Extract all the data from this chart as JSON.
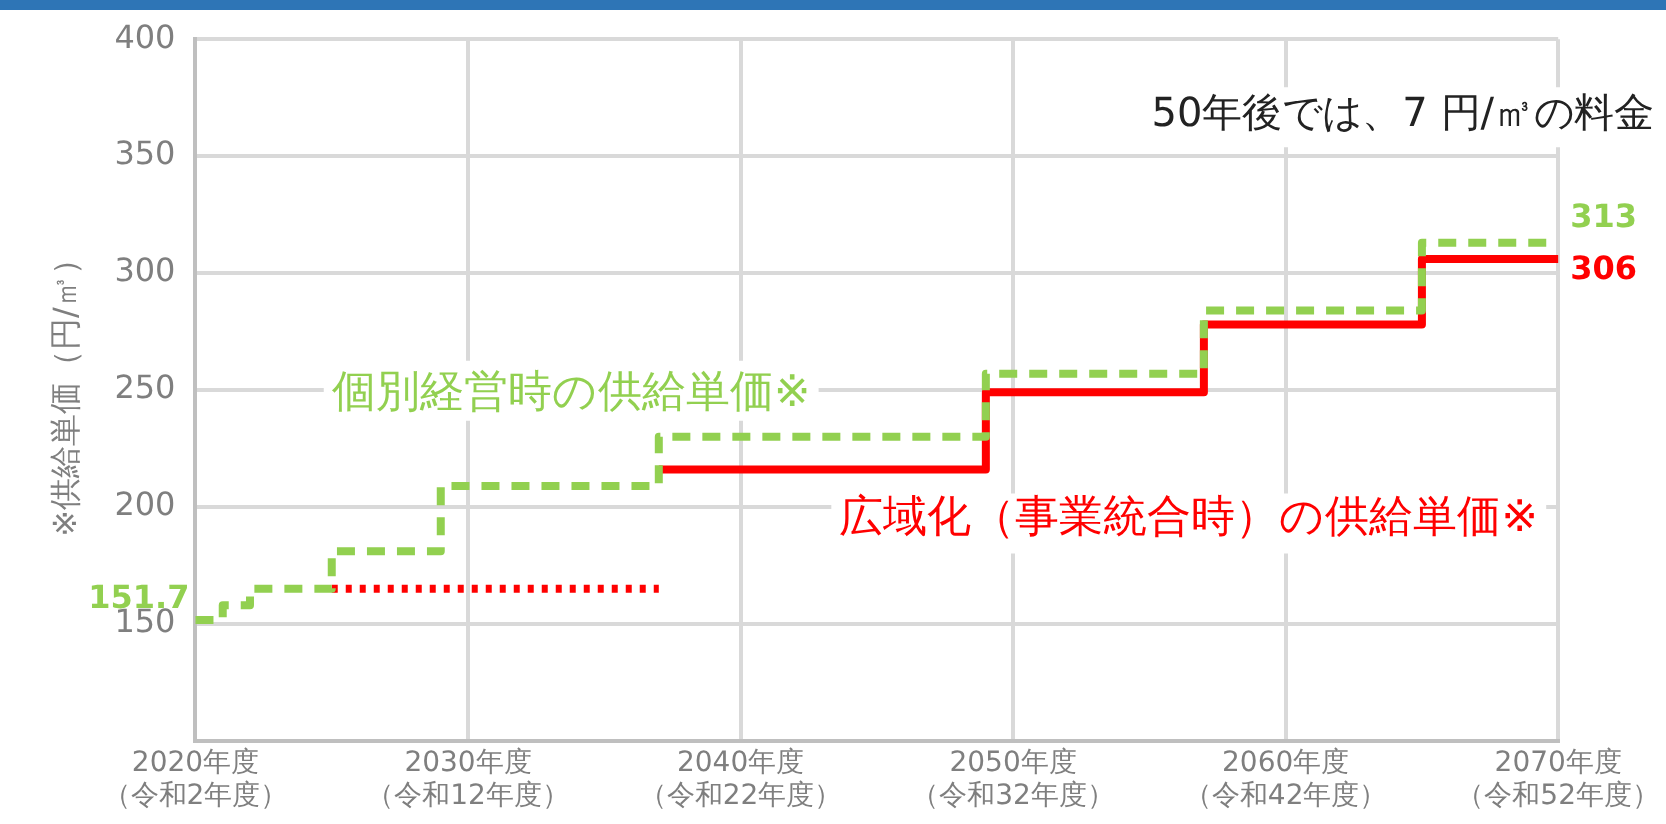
{
  "chart_data": {
    "type": "step",
    "ylabel": "※供給単価（円/㎥）",
    "categories": [
      "2020年度（令和2年度）",
      null,
      null,
      null,
      null,
      null,
      null,
      null,
      null,
      null,
      "2030年度（令和12年度）",
      null,
      null,
      null,
      null,
      null,
      null,
      null,
      null,
      null,
      "2040年度（令和22年度）",
      null,
      null,
      null,
      null,
      null,
      null,
      null,
      null,
      null,
      "2050年度（令和32年度）",
      null,
      null,
      null,
      null,
      null,
      null,
      null,
      null,
      null,
      "2060年度（令和42年度）",
      null,
      null,
      null,
      null,
      null,
      null,
      null,
      null,
      null,
      "2070年度（令和52年度）"
    ],
    "ylim": [
      100,
      400
    ],
    "yticks": [
      150,
      200,
      250,
      300,
      350,
      400
    ],
    "grid": true,
    "legend": false,
    "series": [
      {
        "name": "個別経営時の供給単価※",
        "color": "#92d050",
        "line_style": "dashed",
        "values": [
          151.7,
          158,
          165,
          165,
          165,
          181,
          181,
          181,
          181,
          209,
          209,
          209,
          209,
          209,
          209,
          209,
          209,
          230,
          230,
          230,
          230,
          230,
          230,
          230,
          230,
          230,
          230,
          230,
          230,
          257,
          257,
          257,
          257,
          257,
          257,
          257,
          257,
          284,
          284,
          284,
          284,
          284,
          284,
          284,
          284,
          313,
          313,
          313,
          313,
          313,
          313
        ],
        "value_labels": [
          "151.7",
          null,
          null,
          null,
          null,
          null,
          null,
          null,
          null,
          null,
          null,
          null,
          null,
          null,
          null,
          null,
          null,
          null,
          null,
          null,
          null,
          null,
          null,
          null,
          null,
          null,
          null,
          null,
          null,
          null,
          null,
          null,
          null,
          null,
          null,
          null,
          null,
          null,
          null,
          null,
          null,
          null,
          null,
          null,
          null,
          null,
          null,
          null,
          null,
          null,
          "313"
        ]
      },
      {
        "color": "#ff0000",
        "line_style": "dotted",
        "values": [
          null,
          null,
          null,
          null,
          null,
          165,
          165,
          165,
          165,
          165,
          165,
          165,
          165,
          165,
          165,
          165,
          165,
          165,
          null,
          null,
          null,
          null,
          null,
          null,
          null,
          null,
          null,
          null,
          null,
          null,
          null,
          null,
          null,
          null,
          null,
          null,
          null,
          null,
          null,
          null,
          null,
          null,
          null,
          null,
          null,
          null,
          null,
          null,
          null,
          null,
          null
        ]
      },
      {
        "name": "広域化（事業統合時）の供給単価※",
        "color": "#ff0000",
        "line_style": "solid",
        "values": [
          null,
          null,
          null,
          null,
          null,
          null,
          null,
          null,
          null,
          null,
          null,
          null,
          null,
          null,
          null,
          null,
          null,
          216,
          216,
          216,
          216,
          216,
          216,
          216,
          216,
          216,
          216,
          216,
          216,
          249,
          249,
          249,
          249,
          249,
          249,
          249,
          249,
          278,
          278,
          278,
          278,
          278,
          278,
          278,
          278,
          306,
          306,
          306,
          306,
          306,
          306
        ],
        "value_labels": [
          null,
          null,
          null,
          null,
          null,
          null,
          null,
          null,
          null,
          null,
          null,
          null,
          null,
          null,
          null,
          null,
          null,
          null,
          null,
          null,
          null,
          null,
          null,
          null,
          null,
          null,
          null,
          null,
          null,
          null,
          null,
          null,
          null,
          null,
          null,
          null,
          null,
          null,
          null,
          null,
          null,
          null,
          null,
          null,
          null,
          null,
          null,
          null,
          null,
          null,
          "306"
        ]
      }
    ],
    "annotations": [
      "50年後では、7 円/㎥の料金"
    ]
  }
}
